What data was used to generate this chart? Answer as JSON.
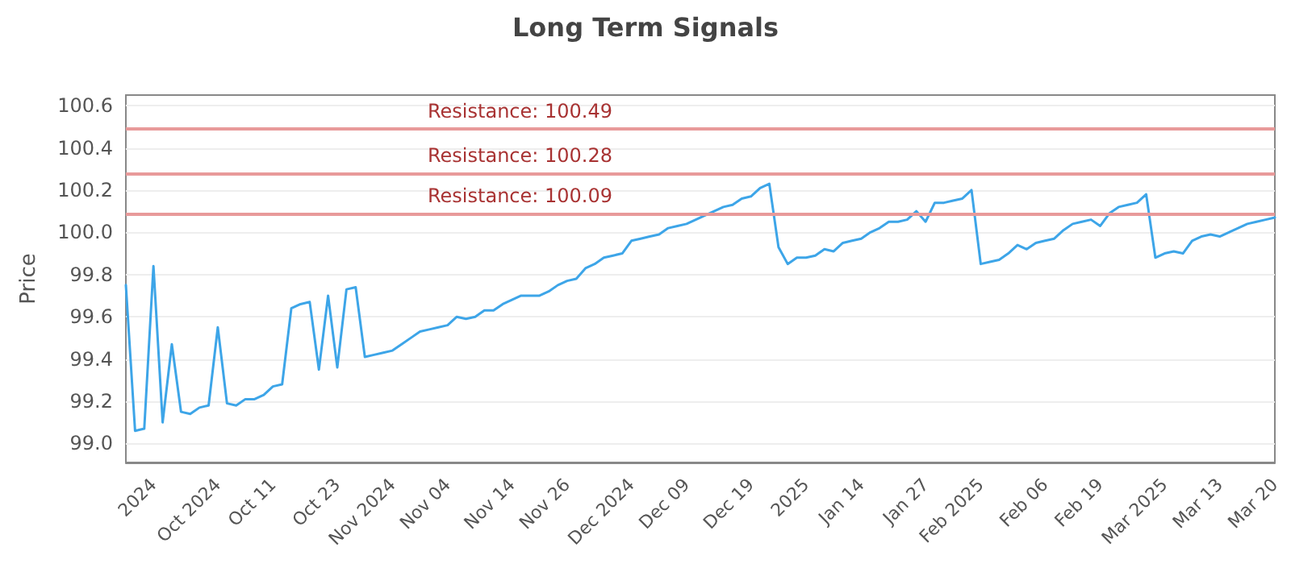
{
  "chart_data": {
    "type": "line",
    "title": "Long Term Signals",
    "ylabel": "Price",
    "categories": [
      null,
      null,
      null,
      "2024",
      null,
      null,
      null,
      null,
      null,
      null,
      "Oct 2024",
      null,
      null,
      null,
      null,
      null,
      "Oct 11",
      null,
      null,
      null,
      null,
      null,
      null,
      "Oct 23",
      null,
      null,
      null,
      null,
      null,
      "Nov 2024",
      null,
      null,
      null,
      null,
      null,
      "Nov 04",
      null,
      null,
      null,
      null,
      null,
      null,
      "Nov 14",
      null,
      null,
      null,
      null,
      null,
      "Nov 26",
      null,
      null,
      null,
      null,
      null,
      null,
      "Dec 2024",
      null,
      null,
      null,
      null,
      null,
      "Dec 09",
      null,
      null,
      null,
      null,
      null,
      null,
      "Dec 19",
      null,
      null,
      null,
      null,
      null,
      "2025",
      null,
      null,
      null,
      null,
      null,
      "Jan 14",
      null,
      null,
      null,
      null,
      null,
      null,
      "Jan 27",
      null,
      null,
      null,
      null,
      null,
      "Feb 2025",
      null,
      null,
      null,
      null,
      null,
      null,
      "Feb 06",
      null,
      null,
      null,
      null,
      null,
      "Feb 19",
      null,
      null,
      null,
      null,
      null,
      null,
      "Mar 2025",
      null,
      null,
      null,
      null,
      null,
      "Mar 13",
      null,
      null,
      null,
      null,
      null,
      "Mar 20"
    ],
    "series": [
      {
        "color": "#3da5e8",
        "values": [
          99.75,
          99.06,
          99.07,
          99.84,
          99.1,
          99.47,
          99.15,
          99.14,
          99.17,
          99.18,
          99.55,
          99.19,
          99.18,
          99.21,
          99.21,
          99.23,
          99.27,
          99.28,
          99.64,
          99.66,
          99.67,
          99.35,
          99.7,
          99.36,
          99.73,
          99.74,
          99.41,
          99.42,
          99.43,
          99.44,
          99.47,
          99.5,
          99.53,
          99.54,
          99.55,
          99.56,
          99.6,
          99.59,
          99.6,
          99.63,
          99.63,
          99.66,
          99.68,
          99.7,
          99.7,
          99.7,
          99.72,
          99.75,
          99.77,
          99.78,
          99.83,
          99.85,
          99.88,
          99.89,
          99.9,
          99.96,
          99.97,
          99.98,
          99.99,
          100.02,
          100.03,
          100.04,
          100.06,
          100.08,
          100.1,
          100.12,
          100.13,
          100.16,
          100.17,
          100.21,
          100.23,
          99.93,
          99.85,
          99.88,
          99.88,
          99.89,
          99.92,
          99.91,
          99.95,
          99.96,
          99.97,
          100.0,
          100.02,
          100.05,
          100.05,
          100.06,
          100.1,
          100.05,
          100.14,
          100.14,
          100.15,
          100.16,
          100.2,
          99.85,
          99.86,
          99.87,
          99.9,
          99.94,
          99.92,
          99.95,
          99.96,
          99.97,
          100.01,
          100.04,
          100.05,
          100.06,
          100.03,
          100.09,
          100.12,
          100.13,
          100.14,
          100.18,
          99.88,
          99.9,
          99.91,
          99.9,
          99.96,
          99.98,
          99.99,
          99.98,
          100.0,
          100.02,
          100.04,
          100.05,
          100.06,
          100.07
        ]
      }
    ],
    "ylim": [
      98.91,
      100.65
    ],
    "yticks": [
      {
        "value": 99,
        "label": "99.0"
      },
      99.2,
      99.4,
      99.6,
      99.8,
      {
        "value": 100,
        "label": "100.0"
      },
      100.2,
      100.4,
      100.6
    ],
    "ref_lines": [
      {
        "axis": "y",
        "value": 100.49,
        "label": "Resistance: 100.49",
        "color": "#e89a9a"
      },
      {
        "axis": "y",
        "value": 100.28,
        "label": "Resistance: 100.28",
        "color": "#e89a9a"
      },
      {
        "axis": "y",
        "value": 100.09,
        "label": "Resistance: 100.09",
        "color": "#e89a9a"
      }
    ],
    "grid": "y",
    "marker": "none",
    "line_style": "solid"
  }
}
